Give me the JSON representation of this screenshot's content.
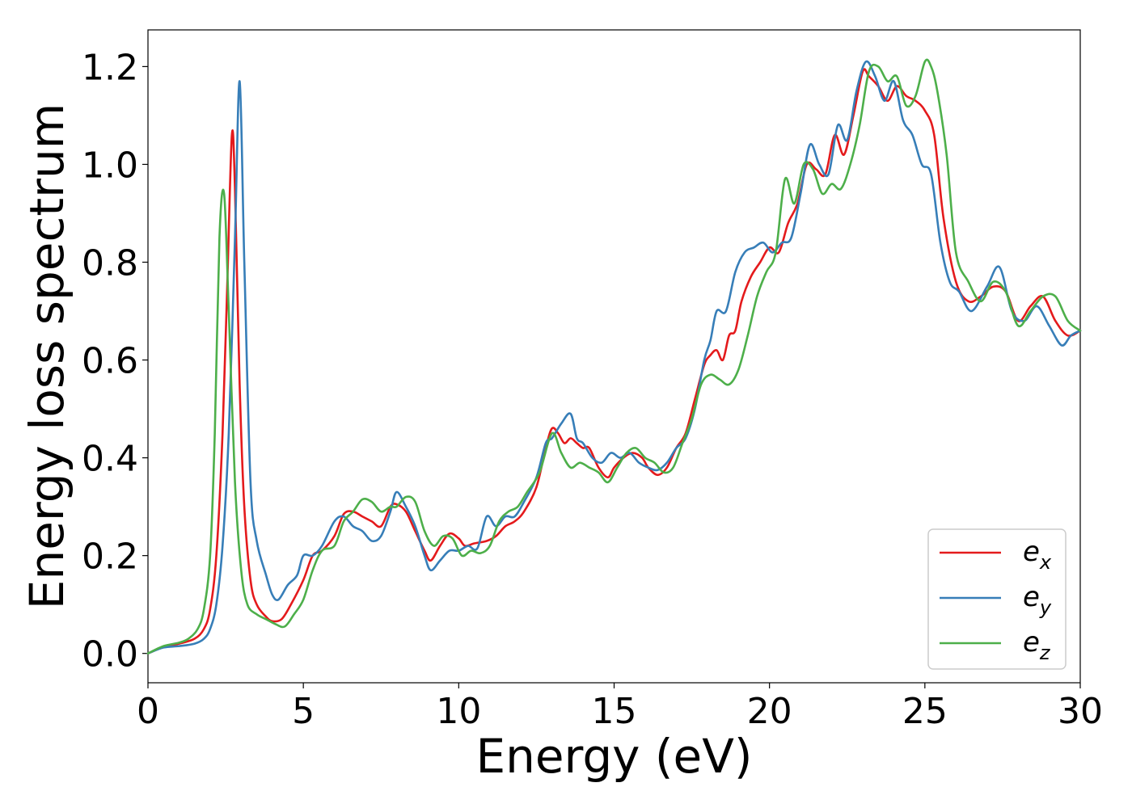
{
  "chart_data": {
    "type": "line",
    "xlabel": "Energy (eV)",
    "ylabel": "Energy loss spectrum",
    "xlim": [
      0,
      30
    ],
    "ylim": [
      -0.06,
      1.275
    ],
    "xticks": [
      0,
      5,
      10,
      15,
      20,
      25,
      30
    ],
    "yticks": [
      0.0,
      0.2,
      0.4,
      0.6,
      0.8,
      1.0,
      1.2
    ],
    "xtick_labels": [
      "0",
      "5",
      "10",
      "15",
      "20",
      "25",
      "30"
    ],
    "ytick_labels": [
      "0.0",
      "0.2",
      "0.4",
      "0.6",
      "0.8",
      "1.0",
      "1.2"
    ],
    "grid": false,
    "legend_position": "lower-right",
    "series": [
      {
        "name": "e_x",
        "label_base": "e",
        "label_sub": "x",
        "color": "#e41a1c",
        "x": [
          0,
          0.5,
          1.0,
          1.5,
          1.8,
          2.0,
          2.2,
          2.4,
          2.55,
          2.7,
          2.8,
          2.95,
          3.1,
          3.3,
          3.5,
          3.8,
          4.0,
          4.3,
          4.6,
          5.0,
          5.3,
          5.6,
          6.0,
          6.3,
          6.6,
          6.9,
          7.2,
          7.5,
          7.8,
          8.0,
          8.3,
          8.6,
          8.9,
          9.1,
          9.4,
          9.7,
          10.0,
          10.2,
          10.5,
          10.9,
          11.2,
          11.5,
          11.8,
          12.1,
          12.5,
          12.8,
          13.0,
          13.2,
          13.4,
          13.6,
          13.8,
          14.0,
          14.2,
          14.5,
          14.8,
          15.0,
          15.3,
          15.6,
          15.9,
          16.1,
          16.4,
          16.7,
          17.0,
          17.3,
          17.6,
          17.9,
          18.1,
          18.3,
          18.5,
          18.7,
          18.9,
          19.1,
          19.4,
          19.7,
          20.0,
          20.3,
          20.6,
          20.9,
          21.2,
          21.5,
          21.8,
          22.1,
          22.4,
          22.7,
          23.0,
          23.2,
          23.5,
          23.8,
          24.1,
          24.4,
          24.7,
          25.0,
          25.3,
          25.6,
          26.0,
          26.4,
          26.8,
          27.2,
          27.6,
          28.0,
          28.4,
          28.8,
          29.2,
          29.6,
          30.0
        ],
        "y": [
          0,
          0.013,
          0.02,
          0.03,
          0.05,
          0.09,
          0.2,
          0.45,
          0.75,
          1.06,
          0.95,
          0.55,
          0.3,
          0.15,
          0.1,
          0.075,
          0.066,
          0.07,
          0.1,
          0.15,
          0.2,
          0.21,
          0.24,
          0.285,
          0.29,
          0.28,
          0.27,
          0.26,
          0.3,
          0.305,
          0.29,
          0.25,
          0.21,
          0.19,
          0.22,
          0.245,
          0.235,
          0.22,
          0.225,
          0.23,
          0.24,
          0.26,
          0.27,
          0.29,
          0.34,
          0.42,
          0.46,
          0.45,
          0.43,
          0.44,
          0.43,
          0.42,
          0.42,
          0.38,
          0.36,
          0.38,
          0.4,
          0.41,
          0.4,
          0.38,
          0.365,
          0.38,
          0.42,
          0.45,
          0.52,
          0.59,
          0.61,
          0.62,
          0.6,
          0.65,
          0.66,
          0.72,
          0.77,
          0.8,
          0.83,
          0.82,
          0.88,
          0.92,
          1.0,
          0.99,
          0.98,
          1.06,
          1.02,
          1.1,
          1.19,
          1.18,
          1.16,
          1.13,
          1.16,
          1.14,
          1.13,
          1.11,
          1.06,
          0.89,
          0.76,
          0.72,
          0.73,
          0.75,
          0.74,
          0.68,
          0.71,
          0.73,
          0.68,
          0.65,
          0.66
        ]
      },
      {
        "name": "e_y",
        "label_base": "e",
        "label_sub": "y",
        "color": "#377eb8",
        "x": [
          0,
          0.5,
          1.0,
          1.5,
          1.8,
          2.0,
          2.2,
          2.4,
          2.6,
          2.8,
          2.95,
          3.1,
          3.3,
          3.5,
          3.8,
          4.0,
          4.2,
          4.5,
          4.8,
          5.0,
          5.3,
          5.6,
          6.0,
          6.3,
          6.6,
          6.9,
          7.2,
          7.5,
          7.8,
          8.0,
          8.3,
          8.6,
          8.9,
          9.1,
          9.4,
          9.7,
          10.0,
          10.3,
          10.6,
          10.9,
          11.2,
          11.5,
          11.8,
          12.1,
          12.5,
          12.8,
          13.0,
          13.3,
          13.6,
          13.8,
          14.0,
          14.3,
          14.6,
          14.9,
          15.2,
          15.5,
          15.8,
          16.1,
          16.4,
          16.7,
          17.0,
          17.3,
          17.6,
          17.9,
          18.1,
          18.3,
          18.6,
          18.9,
          19.2,
          19.5,
          19.8,
          20.1,
          20.4,
          20.7,
          21.0,
          21.3,
          21.6,
          21.9,
          22.2,
          22.5,
          22.8,
          23.1,
          23.4,
          23.7,
          24.0,
          24.3,
          24.6,
          24.9,
          25.2,
          25.5,
          25.8,
          26.1,
          26.5,
          27.0,
          27.4,
          27.8,
          28.2,
          28.6,
          29.0,
          29.4,
          29.7,
          30.0
        ],
        "y": [
          0,
          0.012,
          0.015,
          0.02,
          0.03,
          0.05,
          0.1,
          0.22,
          0.45,
          0.85,
          1.17,
          0.8,
          0.35,
          0.23,
          0.16,
          0.12,
          0.11,
          0.14,
          0.16,
          0.2,
          0.2,
          0.22,
          0.27,
          0.28,
          0.26,
          0.25,
          0.23,
          0.24,
          0.29,
          0.33,
          0.3,
          0.26,
          0.2,
          0.17,
          0.19,
          0.21,
          0.21,
          0.22,
          0.215,
          0.28,
          0.26,
          0.28,
          0.28,
          0.31,
          0.36,
          0.43,
          0.44,
          0.47,
          0.49,
          0.44,
          0.43,
          0.4,
          0.39,
          0.41,
          0.4,
          0.41,
          0.39,
          0.38,
          0.375,
          0.39,
          0.42,
          0.44,
          0.5,
          0.6,
          0.64,
          0.7,
          0.7,
          0.78,
          0.82,
          0.83,
          0.84,
          0.82,
          0.84,
          0.85,
          0.94,
          1.04,
          1.0,
          0.98,
          1.08,
          1.05,
          1.15,
          1.21,
          1.18,
          1.13,
          1.17,
          1.09,
          1.06,
          1.0,
          0.98,
          0.84,
          0.76,
          0.74,
          0.7,
          0.75,
          0.79,
          0.7,
          0.68,
          0.71,
          0.67,
          0.63,
          0.65,
          0.66
        ]
      },
      {
        "name": "e_z",
        "label_base": "e",
        "label_sub": "z",
        "color": "#4daf4a",
        "x": [
          0,
          0.5,
          1.0,
          1.3,
          1.6,
          1.8,
          2.0,
          2.15,
          2.3,
          2.45,
          2.6,
          2.8,
          3.0,
          3.2,
          3.5,
          3.8,
          4.1,
          4.4,
          4.7,
          5.0,
          5.3,
          5.6,
          6.0,
          6.3,
          6.6,
          6.9,
          7.2,
          7.5,
          7.8,
          8.0,
          8.3,
          8.6,
          8.9,
          9.2,
          9.5,
          9.8,
          10.1,
          10.4,
          10.7,
          11.0,
          11.3,
          11.6,
          11.9,
          12.2,
          12.6,
          13.0,
          13.3,
          13.6,
          13.9,
          14.2,
          14.5,
          14.8,
          15.1,
          15.4,
          15.7,
          16.0,
          16.3,
          16.6,
          16.9,
          17.2,
          17.5,
          17.8,
          18.1,
          18.4,
          18.7,
          19.0,
          19.3,
          19.6,
          19.9,
          20.2,
          20.5,
          20.8,
          21.1,
          21.4,
          21.7,
          22.0,
          22.3,
          22.6,
          22.9,
          23.2,
          23.5,
          23.8,
          24.1,
          24.4,
          24.7,
          25.0,
          25.2,
          25.4,
          25.7,
          26.0,
          26.4,
          26.8,
          27.2,
          27.6,
          28.0,
          28.4,
          28.8,
          29.2,
          29.6,
          30.0
        ],
        "y": [
          0,
          0.015,
          0.022,
          0.03,
          0.05,
          0.09,
          0.2,
          0.45,
          0.85,
          0.94,
          0.7,
          0.35,
          0.17,
          0.1,
          0.08,
          0.07,
          0.06,
          0.055,
          0.08,
          0.11,
          0.17,
          0.21,
          0.22,
          0.27,
          0.29,
          0.315,
          0.31,
          0.29,
          0.3,
          0.3,
          0.32,
          0.31,
          0.25,
          0.22,
          0.24,
          0.235,
          0.2,
          0.21,
          0.205,
          0.22,
          0.27,
          0.29,
          0.3,
          0.33,
          0.37,
          0.45,
          0.41,
          0.38,
          0.39,
          0.38,
          0.37,
          0.35,
          0.38,
          0.41,
          0.42,
          0.4,
          0.39,
          0.37,
          0.38,
          0.43,
          0.48,
          0.55,
          0.57,
          0.56,
          0.55,
          0.58,
          0.65,
          0.73,
          0.78,
          0.82,
          0.97,
          0.92,
          1.0,
          0.99,
          0.94,
          0.96,
          0.95,
          1.0,
          1.08,
          1.19,
          1.2,
          1.17,
          1.18,
          1.12,
          1.14,
          1.21,
          1.2,
          1.15,
          1.02,
          0.82,
          0.76,
          0.72,
          0.76,
          0.74,
          0.67,
          0.7,
          0.73,
          0.73,
          0.68,
          0.66
        ]
      }
    ]
  }
}
